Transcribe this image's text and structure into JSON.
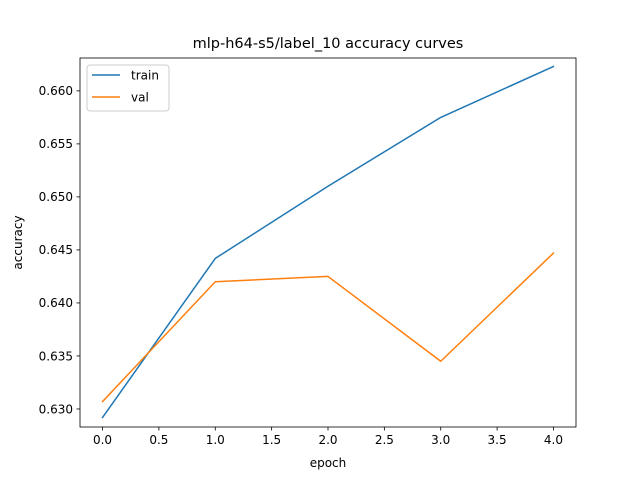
{
  "chart_data": {
    "type": "line",
    "title": "mlp-h64-s5/label_10 accuracy curves",
    "xlabel": "epoch",
    "ylabel": "accuracy",
    "x": [
      0,
      1,
      2,
      3,
      4
    ],
    "xlim": [
      -0.2,
      4.2
    ],
    "ylim": [
      0.6283,
      0.6631
    ],
    "xticks": [
      0.0,
      0.5,
      1.0,
      1.5,
      2.0,
      2.5,
      3.0,
      3.5,
      4.0
    ],
    "xtick_labels": [
      "0.0",
      "0.5",
      "1.0",
      "1.5",
      "2.0",
      "2.5",
      "3.0",
      "3.5",
      "4.0"
    ],
    "yticks": [
      0.63,
      0.635,
      0.64,
      0.645,
      0.65,
      0.655,
      0.66
    ],
    "ytick_labels": [
      "0.630",
      "0.635",
      "0.640",
      "0.645",
      "0.650",
      "0.655",
      "0.660"
    ],
    "grid": false,
    "legend_position": "top-left",
    "series": [
      {
        "name": "train",
        "color": "#1f77b4",
        "values": [
          0.6292,
          0.6442,
          0.651,
          0.6575,
          0.6623
        ]
      },
      {
        "name": "val",
        "color": "#ff7f0e",
        "values": [
          0.6307,
          0.642,
          0.6425,
          0.6345,
          0.6447
        ]
      }
    ]
  }
}
